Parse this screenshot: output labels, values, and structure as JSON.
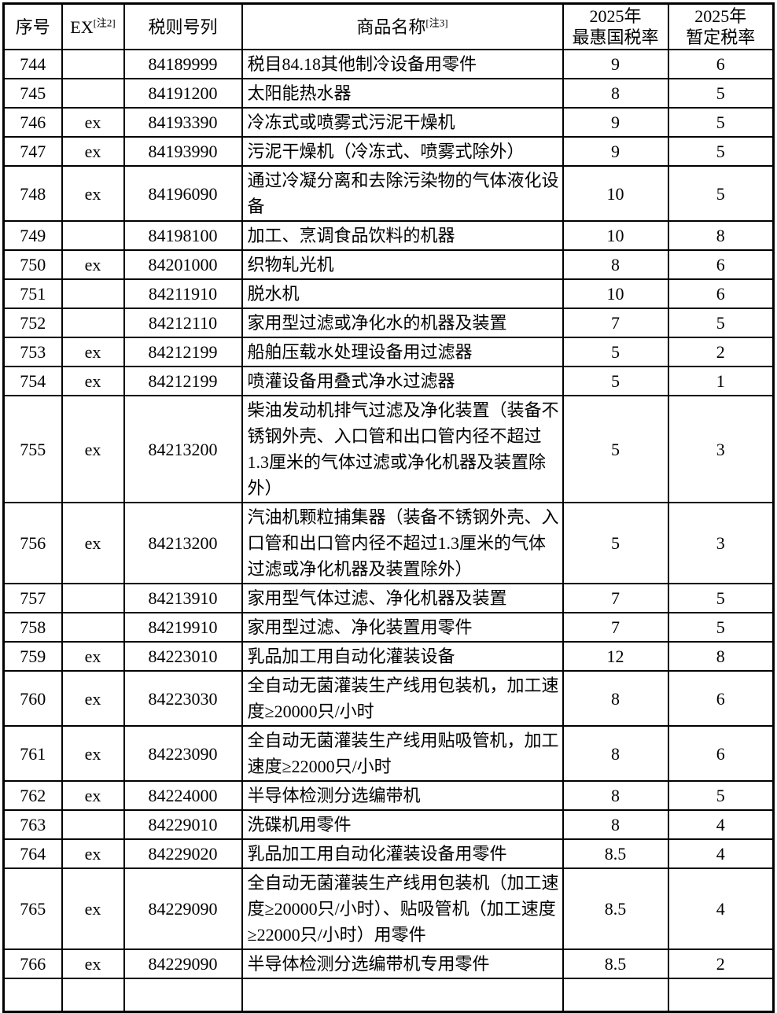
{
  "colors": {
    "border": "#000000",
    "text": "#000000",
    "background": "#ffffff"
  },
  "table": {
    "headers": {
      "no": "序号",
      "ex": "EX",
      "ex_note": "[注2]",
      "code": "税则号列",
      "name": "商品名称",
      "name_note": "[注3]",
      "mfn_line1": "2025年",
      "mfn_line2": "最惠国税率",
      "prov_line1": "2025年",
      "prov_line2": "暂定税率"
    },
    "rows": [
      {
        "no": "744",
        "ex": "",
        "code": "84189999",
        "name": "税目84.18其他制冷设备用零件",
        "mfn": "9",
        "prov": "6"
      },
      {
        "no": "745",
        "ex": "",
        "code": "84191200",
        "name": "太阳能热水器",
        "mfn": "8",
        "prov": "5"
      },
      {
        "no": "746",
        "ex": "ex",
        "code": "84193390",
        "name": "冷冻式或喷雾式污泥干燥机",
        "mfn": "9",
        "prov": "5"
      },
      {
        "no": "747",
        "ex": "ex",
        "code": "84193990",
        "name": "污泥干燥机（冷冻式、喷雾式除外）",
        "mfn": "9",
        "prov": "5"
      },
      {
        "no": "748",
        "ex": "ex",
        "code": "84196090",
        "name": "通过冷凝分离和去除污染物的气体液化设备",
        "mfn": "10",
        "prov": "5"
      },
      {
        "no": "749",
        "ex": "",
        "code": "84198100",
        "name": "加工、烹调食品饮料的机器",
        "mfn": "10",
        "prov": "8"
      },
      {
        "no": "750",
        "ex": "ex",
        "code": "84201000",
        "name": "织物轧光机",
        "mfn": "8",
        "prov": "6"
      },
      {
        "no": "751",
        "ex": "",
        "code": "84211910",
        "name": "脱水机",
        "mfn": "10",
        "prov": "6"
      },
      {
        "no": "752",
        "ex": "",
        "code": "84212110",
        "name": "家用型过滤或净化水的机器及装置",
        "mfn": "7",
        "prov": "5"
      },
      {
        "no": "753",
        "ex": "ex",
        "code": "84212199",
        "name": "船舶压载水处理设备用过滤器",
        "mfn": "5",
        "prov": "2"
      },
      {
        "no": "754",
        "ex": "ex",
        "code": "84212199",
        "name": "喷灌设备用叠式净水过滤器",
        "mfn": "5",
        "prov": "1"
      },
      {
        "no": "755",
        "ex": "ex",
        "code": "84213200",
        "name": "柴油发动机排气过滤及净化装置（装备不锈钢外壳、入口管和出口管内径不超过1.3厘米的气体过滤或净化机器及装置除外）",
        "mfn": "5",
        "prov": "3"
      },
      {
        "no": "756",
        "ex": "ex",
        "code": "84213200",
        "name": "汽油机颗粒捕集器（装备不锈钢外壳、入口管和出口管内径不超过1.3厘米的气体过滤或净化机器及装置除外）",
        "mfn": "5",
        "prov": "3"
      },
      {
        "no": "757",
        "ex": "",
        "code": "84213910",
        "name": "家用型气体过滤、净化机器及装置",
        "mfn": "7",
        "prov": "5"
      },
      {
        "no": "758",
        "ex": "",
        "code": "84219910",
        "name": "家用型过滤、净化装置用零件",
        "mfn": "7",
        "prov": "5"
      },
      {
        "no": "759",
        "ex": "ex",
        "code": "84223010",
        "name": "乳品加工用自动化灌装设备",
        "mfn": "12",
        "prov": "8"
      },
      {
        "no": "760",
        "ex": "ex",
        "code": "84223030",
        "name": "全自动无菌灌装生产线用包装机，加工速度≥20000只/小时",
        "mfn": "8",
        "prov": "6"
      },
      {
        "no": "761",
        "ex": "ex",
        "code": "84223090",
        "name": "全自动无菌灌装生产线用贴吸管机，加工速度≥22000只/小时",
        "mfn": "8",
        "prov": "6"
      },
      {
        "no": "762",
        "ex": "ex",
        "code": "84224000",
        "name": "半导体检测分选编带机",
        "mfn": "8",
        "prov": "5"
      },
      {
        "no": "763",
        "ex": "",
        "code": "84229010",
        "name": "洗碟机用零件",
        "mfn": "8",
        "prov": "4"
      },
      {
        "no": "764",
        "ex": "ex",
        "code": "84229020",
        "name": "乳品加工用自动化灌装设备用零件",
        "mfn": "8.5",
        "prov": "4"
      },
      {
        "no": "765",
        "ex": "ex",
        "code": "84229090",
        "name": "全自动无菌灌装生产线用包装机（加工速度≥20000只/小时）、贴吸管机（加工速度≥22000只/小时）用零件",
        "mfn": "8.5",
        "prov": "4"
      },
      {
        "no": "766",
        "ex": "ex",
        "code": "84229090",
        "name": "半导体检测分选编带机专用零件",
        "mfn": "8.5",
        "prov": "2"
      }
    ]
  }
}
